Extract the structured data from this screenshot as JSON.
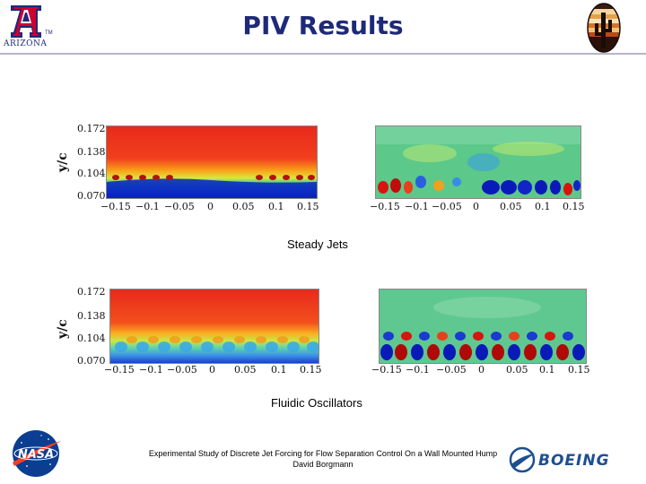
{
  "header": {
    "title": "PIV Results",
    "university_word": "ARIZONA",
    "university_mark": "A",
    "tm": "TM"
  },
  "figures": {
    "y_label": "y/c",
    "y_ticks": [
      "0.172",
      "0.138",
      "0.104",
      "0.070"
    ],
    "x_ticks": [
      "−0.15",
      "−0.1",
      "−0.05",
      "0",
      "0.05",
      "0.1",
      "0.15"
    ]
  },
  "captions": {
    "steady": "Steady Jets",
    "oscillators": "Fluidic Oscillators"
  },
  "footer": {
    "line1": "Experimental Study of Discrete Jet Forcing for Flow Separation Control On a Wall Mounted Hump",
    "line2": "David Borgmann"
  },
  "logos": {
    "nasa": "NASA",
    "boeing": "BOEING"
  },
  "colors": {
    "title": "#1e2a78",
    "ua_red": "#cc0033",
    "ua_blue": "#1e2a78",
    "nasa_blue": "#0b3d91",
    "nasa_red": "#fc3d21",
    "boeing_blue": "#1d4f91"
  }
}
